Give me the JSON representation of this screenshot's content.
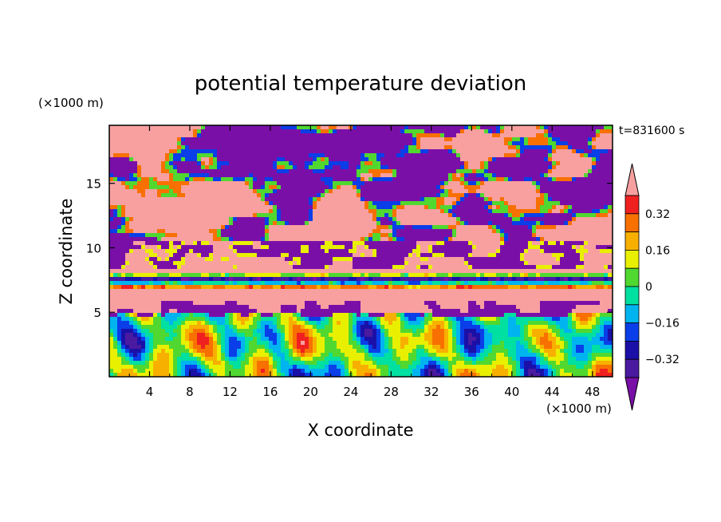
{
  "chart_data": {
    "type": "heatmap",
    "title": "potential temperature deviation",
    "time_label": "t=831600 s",
    "xlabel": "X coordinate",
    "ylabel": "Z coordinate",
    "x_unit": "(×1000 m)",
    "y_unit": "(×1000 m)",
    "xlim": [
      0,
      50
    ],
    "ylim": [
      0,
      19.5
    ],
    "x_ticks": [
      4,
      8,
      12,
      16,
      20,
      24,
      28,
      32,
      36,
      40,
      44,
      48
    ],
    "y_ticks": [
      5,
      10,
      15
    ],
    "colorbar": {
      "levels": [
        -0.4,
        -0.32,
        -0.24,
        -0.16,
        -0.08,
        0,
        0.08,
        0.16,
        0.24,
        0.32,
        0.4
      ],
      "tick_labels": [
        "0.32",
        "0.16",
        "0",
        "−0.16",
        "−0.32"
      ],
      "tick_values": [
        0.32,
        0.16,
        0,
        -0.16,
        -0.32
      ],
      "colors": [
        "#7a0fa8",
        "#4a1aa0",
        "#1a10a8",
        "#0a3ee8",
        "#00b4f0",
        "#00e0a0",
        "#50d830",
        "#e8f000",
        "#f8b000",
        "#f87000",
        "#f02020",
        "#f8a0a0"
      ]
    },
    "layers": [
      {
        "z_range": [
          15.5,
          19.5
        ],
        "dominant": [
          -0.4,
          0.4
        ],
        "description_values": [
          0.4,
          -0.4
        ]
      },
      {
        "z_range": [
          10.5,
          15.5
        ],
        "dominant": [
          0.4,
          -0.4
        ]
      },
      {
        "z_range": [
          8.3,
          10.5
        ],
        "dominant": [
          -0.4,
          0.4
        ]
      },
      {
        "z_range": [
          5.0,
          8.3
        ],
        "dominant": [
          0.4,
          0.1
        ]
      },
      {
        "z_range": [
          0,
          5.0
        ],
        "dominant": [
          -0.2,
          0.2
        ]
      }
    ]
  }
}
